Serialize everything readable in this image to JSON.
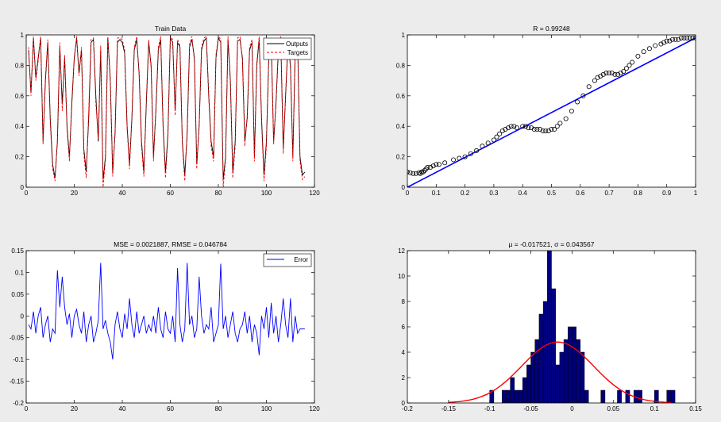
{
  "chart_data": [
    {
      "type": "line",
      "title": "Train Data",
      "xlim": [
        0,
        120
      ],
      "ylim": [
        0,
        1
      ],
      "xticks": [
        0,
        20,
        40,
        60,
        80,
        100,
        120
      ],
      "yticks": [
        0,
        0.2,
        0.4,
        0.6,
        0.8,
        1
      ],
      "legend": {
        "position": "top-right",
        "entries": [
          "Outputs",
          "Targets"
        ]
      },
      "colors": {
        "Outputs": "#000000",
        "Targets": "#ff0000"
      },
      "series": [
        {
          "name": "Outputs",
          "style": "solid",
          "x": [
            1,
            2,
            3,
            4,
            5,
            6,
            7,
            8,
            9,
            10,
            11,
            12,
            13,
            14,
            15,
            16,
            17,
            18,
            19,
            20,
            21,
            22,
            23,
            24,
            25,
            26,
            27,
            28,
            29,
            30,
            31,
            32,
            33,
            34,
            35,
            36,
            37,
            38,
            39,
            40,
            41,
            42,
            43,
            44,
            45,
            46,
            47,
            48,
            49,
            50,
            51,
            52,
            53,
            54,
            55,
            56,
            57,
            58,
            59,
            60,
            61,
            62,
            63,
            64,
            65,
            66,
            67,
            68,
            69,
            70,
            71,
            72,
            73,
            74,
            75,
            76,
            77,
            78,
            79,
            80,
            81,
            82,
            83,
            84,
            85,
            86,
            87,
            88,
            89,
            90,
            91,
            92,
            93,
            94,
            95,
            96,
            97,
            98,
            99,
            100,
            101,
            102,
            103,
            104,
            105,
            106,
            107,
            108,
            109,
            110,
            111,
            112,
            113,
            114,
            115,
            116
          ],
          "values": [
            0.9,
            0.62,
            0.98,
            0.72,
            0.85,
            0.98,
            0.3,
            0.7,
            0.95,
            0.45,
            0.15,
            0.06,
            0.3,
            0.92,
            0.55,
            0.85,
            0.4,
            0.2,
            0.55,
            0.85,
            0.98,
            0.75,
            0.9,
            0.25,
            0.1,
            0.45,
            0.95,
            0.97,
            0.6,
            0.3,
            0.9,
            0.05,
            0.2,
            0.98,
            0.7,
            0.1,
            0.35,
            0.95,
            0.97,
            0.95,
            0.88,
            0.4,
            0.15,
            0.45,
            0.9,
            0.97,
            0.75,
            0.3,
            0.1,
            0.55,
            0.95,
            0.8,
            0.2,
            0.5,
            0.9,
            0.97,
            0.4,
            0.1,
            0.35,
            0.98,
            0.95,
            0.5,
            0.95,
            0.92,
            0.3,
            0.08,
            0.35,
            0.92,
            0.97,
            0.85,
            0.15,
            0.4,
            0.9,
            0.96,
            0.98,
            0.6,
            0.3,
            0.2,
            0.85,
            0.98,
            0.95,
            0.05,
            0.2,
            0.97,
            0.7,
            0.1,
            0.3,
            0.96,
            0.97,
            0.85,
            0.3,
            0.45,
            0.9,
            0.95,
            0.2,
            0.8,
            0.97,
            0.45,
            0.08,
            0.3,
            0.85,
            0.95,
            0.3,
            0.55,
            0.9,
            0.97,
            0.25,
            0.6,
            0.95,
            0.8,
            0.2,
            0.9,
            0.95,
            0.2,
            0.08,
            0.1
          ]
        },
        {
          "name": "Targets",
          "style": "dashed",
          "x": [
            1,
            2,
            3,
            4,
            5,
            6,
            7,
            8,
            9,
            10,
            11,
            12,
            13,
            14,
            15,
            16,
            17,
            18,
            19,
            20,
            21,
            22,
            23,
            24,
            25,
            26,
            27,
            28,
            29,
            30,
            31,
            32,
            33,
            34,
            35,
            36,
            37,
            38,
            39,
            40,
            41,
            42,
            43,
            44,
            45,
            46,
            47,
            48,
            49,
            50,
            51,
            52,
            53,
            54,
            55,
            56,
            57,
            58,
            59,
            60,
            61,
            62,
            63,
            64,
            65,
            66,
            67,
            68,
            69,
            70,
            71,
            72,
            73,
            74,
            75,
            76,
            77,
            78,
            79,
            80,
            81,
            82,
            83,
            84,
            85,
            86,
            87,
            88,
            89,
            90,
            91,
            92,
            93,
            94,
            95,
            96,
            97,
            98,
            99,
            100,
            101,
            102,
            103,
            104,
            105,
            106,
            107,
            108,
            109,
            110,
            111,
            112,
            113,
            114,
            115,
            116
          ],
          "values": [
            0.92,
            0.6,
            0.99,
            0.7,
            0.83,
            0.99,
            0.28,
            0.72,
            0.97,
            0.42,
            0.12,
            0.04,
            0.32,
            0.95,
            0.5,
            0.87,
            0.38,
            0.17,
            0.58,
            0.83,
            0.99,
            0.73,
            0.92,
            0.22,
            0.06,
            0.5,
            0.97,
            0.98,
            0.55,
            0.32,
            0.93,
            0.0,
            0.18,
            0.99,
            0.72,
            0.07,
            0.37,
            0.98,
            0.98,
            0.97,
            0.9,
            0.38,
            0.12,
            0.47,
            0.92,
            0.99,
            0.73,
            0.27,
            0.07,
            0.58,
            0.97,
            0.78,
            0.17,
            0.52,
            0.92,
            0.99,
            0.38,
            0.06,
            0.33,
            0.99,
            0.97,
            0.47,
            0.97,
            0.93,
            0.28,
            0.04,
            0.37,
            0.94,
            0.99,
            0.83,
            0.12,
            0.42,
            0.92,
            0.98,
            0.99,
            0.58,
            0.27,
            0.17,
            0.87,
            0.99,
            0.97,
            0.0,
            0.18,
            0.99,
            0.72,
            0.06,
            0.27,
            0.98,
            0.99,
            0.83,
            0.27,
            0.47,
            0.92,
            0.97,
            0.17,
            0.82,
            0.99,
            0.42,
            0.04,
            0.27,
            0.87,
            0.97,
            0.28,
            0.57,
            0.92,
            0.99,
            0.22,
            0.62,
            0.97,
            0.78,
            0.17,
            0.92,
            0.97,
            0.17,
            0.05,
            0.07
          ]
        }
      ]
    },
    {
      "type": "scatter",
      "title": "R = 0.99248",
      "xlim": [
        0,
        1
      ],
      "ylim": [
        0,
        1
      ],
      "xticks": [
        0,
        0.1,
        0.2,
        0.3,
        0.4,
        0.5,
        0.6,
        0.7,
        0.8,
        0.9,
        1
      ],
      "yticks": [
        0,
        0.2,
        0.4,
        0.6,
        0.8,
        1
      ],
      "fit_line": {
        "x": [
          0,
          1
        ],
        "y": [
          0.0,
          0.98
        ],
        "color": "#0000ff"
      },
      "points": {
        "x": [
          0.0,
          0.01,
          0.02,
          0.03,
          0.04,
          0.045,
          0.05,
          0.055,
          0.06,
          0.065,
          0.07,
          0.08,
          0.09,
          0.1,
          0.11,
          0.13,
          0.16,
          0.18,
          0.2,
          0.22,
          0.24,
          0.26,
          0.28,
          0.3,
          0.31,
          0.32,
          0.33,
          0.34,
          0.35,
          0.36,
          0.37,
          0.38,
          0.4,
          0.41,
          0.42,
          0.43,
          0.44,
          0.45,
          0.46,
          0.47,
          0.48,
          0.49,
          0.5,
          0.51,
          0.52,
          0.53,
          0.55,
          0.57,
          0.59,
          0.61,
          0.63,
          0.65,
          0.66,
          0.67,
          0.68,
          0.69,
          0.7,
          0.71,
          0.72,
          0.73,
          0.74,
          0.75,
          0.76,
          0.77,
          0.78,
          0.8,
          0.82,
          0.84,
          0.86,
          0.88,
          0.89,
          0.9,
          0.91,
          0.92,
          0.93,
          0.94,
          0.95,
          0.96,
          0.97,
          0.98,
          0.99,
          1.0
        ],
        "y": [
          0.1,
          0.095,
          0.09,
          0.09,
          0.095,
          0.09,
          0.1,
          0.1,
          0.11,
          0.12,
          0.13,
          0.13,
          0.14,
          0.15,
          0.15,
          0.16,
          0.18,
          0.19,
          0.2,
          0.22,
          0.24,
          0.27,
          0.29,
          0.31,
          0.33,
          0.35,
          0.37,
          0.38,
          0.39,
          0.4,
          0.4,
          0.39,
          0.4,
          0.4,
          0.39,
          0.39,
          0.38,
          0.38,
          0.38,
          0.37,
          0.37,
          0.37,
          0.38,
          0.38,
          0.4,
          0.42,
          0.45,
          0.5,
          0.56,
          0.6,
          0.66,
          0.7,
          0.72,
          0.73,
          0.74,
          0.75,
          0.75,
          0.75,
          0.74,
          0.74,
          0.75,
          0.76,
          0.78,
          0.8,
          0.82,
          0.86,
          0.89,
          0.91,
          0.93,
          0.94,
          0.95,
          0.96,
          0.96,
          0.97,
          0.97,
          0.97,
          0.98,
          0.98,
          0.98,
          0.98,
          0.98,
          0.98
        ]
      }
    },
    {
      "type": "line",
      "title": "MSE = 0.0021887, RMSE = 0.046784",
      "xlim": [
        0,
        120
      ],
      "ylim": [
        -0.2,
        0.15
      ],
      "xticks": [
        0,
        20,
        40,
        60,
        80,
        100,
        120
      ],
      "yticks": [
        -0.2,
        -0.15,
        -0.1,
        -0.05,
        0,
        0.05,
        0.1,
        0.15
      ],
      "legend": {
        "position": "top-right",
        "entries": [
          "Error"
        ]
      },
      "colors": {
        "Error": "#0000ff"
      },
      "series": [
        {
          "name": "Error",
          "x": [
            1,
            2,
            3,
            4,
            5,
            6,
            7,
            8,
            9,
            10,
            11,
            12,
            13,
            14,
            15,
            16,
            17,
            18,
            19,
            20,
            21,
            22,
            23,
            24,
            25,
            26,
            27,
            28,
            29,
            30,
            31,
            32,
            33,
            34,
            35,
            36,
            37,
            38,
            39,
            40,
            41,
            42,
            43,
            44,
            45,
            46,
            47,
            48,
            49,
            50,
            51,
            52,
            53,
            54,
            55,
            56,
            57,
            58,
            59,
            60,
            61,
            62,
            63,
            64,
            65,
            66,
            67,
            68,
            69,
            70,
            71,
            72,
            73,
            74,
            75,
            76,
            77,
            78,
            79,
            80,
            81,
            82,
            83,
            84,
            85,
            86,
            87,
            88,
            89,
            90,
            91,
            92,
            93,
            94,
            95,
            96,
            97,
            98,
            99,
            100,
            101,
            102,
            103,
            104,
            105,
            106,
            107,
            108,
            109,
            110,
            111,
            112,
            113,
            114,
            115,
            116
          ],
          "values": [
            -0.02,
            -0.03,
            0.01,
            -0.04,
            0.0,
            0.02,
            -0.05,
            -0.02,
            0.0,
            -0.06,
            -0.03,
            -0.04,
            0.105,
            0.02,
            0.09,
            0.02,
            -0.02,
            0.005,
            -0.05,
            0.0,
            0.015,
            -0.02,
            -0.04,
            0.01,
            -0.06,
            -0.02,
            0.0,
            -0.06,
            -0.04,
            -0.01,
            0.122,
            -0.03,
            -0.01,
            -0.04,
            -0.06,
            -0.1,
            -0.02,
            0.01,
            -0.03,
            -0.05,
            0.005,
            -0.03,
            0.04,
            -0.02,
            -0.05,
            0.01,
            -0.04,
            -0.02,
            0.0,
            -0.04,
            -0.02,
            -0.035,
            0.0,
            -0.04,
            0.02,
            -0.03,
            -0.05,
            0.01,
            -0.03,
            -0.04,
            0.0,
            -0.06,
            0.11,
            -0.02,
            -0.06,
            -0.03,
            0.122,
            -0.02,
            0.0,
            -0.05,
            -0.03,
            0.09,
            0.0,
            -0.04,
            -0.02,
            -0.03,
            0.02,
            -0.06,
            -0.04,
            -0.02,
            0.12,
            -0.03,
            0.0,
            -0.05,
            -0.02,
            0.01,
            -0.04,
            -0.06,
            -0.03,
            -0.02,
            0.01,
            -0.04,
            0.0,
            -0.06,
            -0.02,
            -0.04,
            -0.09,
            0.0,
            -0.03,
            0.02,
            -0.05,
            0.03,
            -0.04,
            0.0,
            -0.06,
            -0.02,
            0.04,
            -0.02,
            -0.05,
            0.04,
            -0.06,
            0.0,
            -0.04,
            -0.03,
            -0.03,
            -0.03
          ]
        }
      ]
    },
    {
      "type": "bar",
      "title": "μ = -0.017521, σ = 0.043567",
      "xlim": [
        -0.2,
        0.15
      ],
      "ylim": [
        0,
        12
      ],
      "xticks": [
        -0.2,
        -0.15,
        -0.1,
        -0.05,
        0,
        0.05,
        0.1,
        0.15
      ],
      "yticks": [
        0,
        2,
        4,
        6,
        8,
        10,
        12
      ],
      "colors": {
        "bars": "#00007f",
        "curve": "#ff0000"
      },
      "bins": {
        "left": [
          -0.1,
          -0.095,
          -0.09,
          -0.085,
          -0.08,
          -0.075,
          -0.07,
          -0.065,
          -0.06,
          -0.055,
          -0.05,
          -0.045,
          -0.04,
          -0.035,
          -0.03,
          -0.025,
          -0.02,
          -0.015,
          -0.01,
          -0.005,
          0.0,
          0.005,
          0.01,
          0.015,
          0.02,
          0.025,
          0.03,
          0.035,
          0.04,
          0.045,
          0.05,
          0.055,
          0.06,
          0.065,
          0.07,
          0.075,
          0.08,
          0.085,
          0.09,
          0.095,
          0.1,
          0.105,
          0.11,
          0.115,
          0.12
        ],
        "counts": [
          1,
          0,
          0,
          1,
          1,
          2,
          1,
          1,
          2,
          3,
          4,
          5,
          7,
          8,
          12,
          9,
          3,
          4,
          5,
          6,
          6,
          5,
          4,
          1,
          0,
          0,
          0,
          1,
          0,
          0,
          0,
          1,
          0,
          1,
          0,
          1,
          1,
          0,
          0,
          0,
          1,
          0,
          0,
          1,
          1
        ]
      },
      "normal_curve": {
        "mean": -0.017521,
        "sigma": 0.043567,
        "xrange": [
          -0.15,
          0.12
        ],
        "peak": 4.8
      }
    }
  ]
}
